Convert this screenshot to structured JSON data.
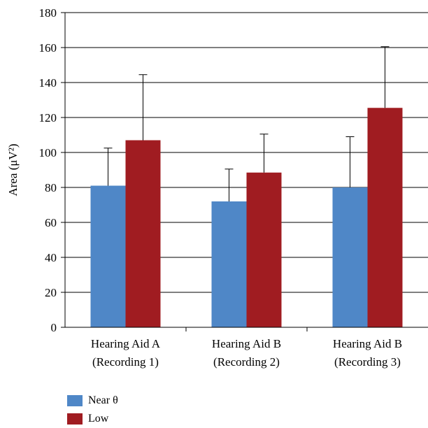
{
  "chart_data": {
    "type": "bar",
    "ylabel": "Area (μV²)",
    "ylim": [
      0,
      180
    ],
    "yticks": [
      0,
      20,
      40,
      60,
      80,
      100,
      120,
      140,
      160,
      180
    ],
    "grid": true,
    "legend_position": "bottom-left",
    "categories": [
      [
        "Hearing Aid A",
        "(Recording 1)"
      ],
      [
        "Hearing Aid B",
        "(Recording 2)"
      ],
      [
        "Hearing Aid B",
        "(Recording 3)"
      ]
    ],
    "series": [
      {
        "name": "Near θ",
        "color": "#4f87c7",
        "values": [
          81,
          72,
          80
        ],
        "errors": [
          21.5,
          18.5,
          29
        ]
      },
      {
        "name": "Low",
        "color": "#a01c21",
        "values": [
          107,
          88.5,
          125.5
        ],
        "errors": [
          37.5,
          22,
          35
        ]
      }
    ]
  }
}
